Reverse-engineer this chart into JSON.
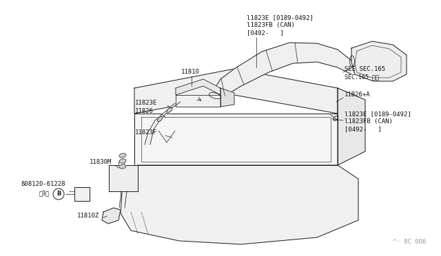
{
  "bg_color": "#ffffff",
  "lc": "#1a1a1a",
  "lw": 0.7,
  "fig_width": 6.4,
  "fig_height": 3.72,
  "dpi": 100,
  "labels": {
    "top_label_1": "l1823E [0189-0492]",
    "top_label_2": "l1823FB (CAN)",
    "top_label_3": "[0492-   ]",
    "see_sec": "SEE SEC.165",
    "see_sec_jp": "SEC.165 参照",
    "label_11826a": "11B26+A",
    "label_11823e_r1": "l1823E [0189-0492]",
    "label_11823e_r2": "l1823FB (CAN)",
    "label_11823e_r3": "[0492-   ]",
    "label_11810": "11810",
    "label_11823e_l": "11823E",
    "label_11826": "11826",
    "label_11823f": "11823F",
    "label_11830m": "11830M",
    "label_bolt": "ß08120-61228",
    "label_bolt2": "＜3＞",
    "label_11810z": "11810Z",
    "watermark": "^· 8C 006"
  }
}
